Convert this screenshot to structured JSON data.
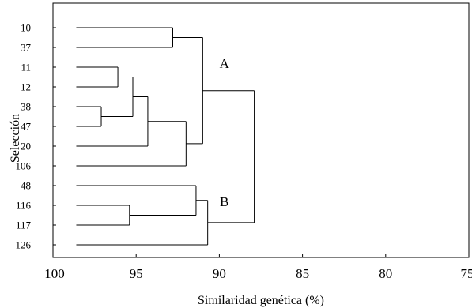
{
  "chart_data": {
    "type": "dendrogram",
    "xlabel": "Similaridad genética (%)",
    "ylabel": "Selección",
    "xlim": [
      100,
      75
    ],
    "xticks": [
      "100",
      "95",
      "90",
      "85",
      "80",
      "75"
    ],
    "leaves": [
      "10",
      "37",
      "11",
      "12",
      "38",
      "47",
      "20",
      "106",
      "48",
      "116",
      "117",
      "126"
    ],
    "leaf_similarity": 98.6,
    "merges": [
      {
        "id": "m1",
        "children": [
          "38",
          "47"
        ],
        "similarity": 97.1
      },
      {
        "id": "m2",
        "children": [
          "11",
          "12"
        ],
        "similarity": 96.1
      },
      {
        "id": "m3",
        "children": [
          "m2",
          "m1"
        ],
        "similarity": 95.2
      },
      {
        "id": "m4",
        "children": [
          "m3",
          "20"
        ],
        "similarity": 94.3
      },
      {
        "id": "m5",
        "children": [
          "m4",
          "106"
        ],
        "similarity": 92.0
      },
      {
        "id": "m6",
        "children": [
          "10",
          "37"
        ],
        "similarity": 92.8
      },
      {
        "id": "m7",
        "children": [
          "m6",
          "m5"
        ],
        "similarity": 91.0
      },
      {
        "id": "m8",
        "children": [
          "116",
          "117"
        ],
        "similarity": 95.4
      },
      {
        "id": "m9",
        "children": [
          "48",
          "m8"
        ],
        "similarity": 91.4
      },
      {
        "id": "m10",
        "children": [
          "m9",
          "126"
        ],
        "similarity": 90.7
      },
      {
        "id": "m11",
        "children": [
          "m7",
          "m10"
        ],
        "similarity": 87.9
      }
    ],
    "annotations": [
      {
        "text": "A",
        "similarity": 89.7,
        "row": 1.8
      },
      {
        "text": "B",
        "similarity": 89.7,
        "row": 8.8
      }
    ]
  }
}
